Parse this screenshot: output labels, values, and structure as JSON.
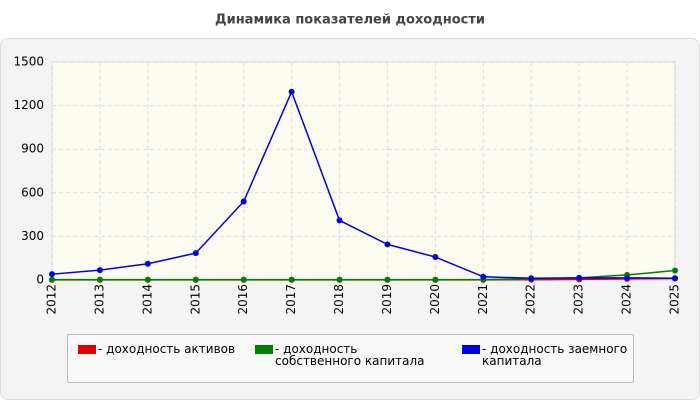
{
  "chart_data": {
    "type": "line",
    "title": "Динамика показателей доходности",
    "categories": [
      "2012",
      "2013",
      "2014",
      "2015",
      "2016",
      "2017",
      "2018",
      "2019",
      "2020",
      "2021",
      "2022",
      "2023",
      "2024",
      "2025"
    ],
    "series": [
      {
        "name": "- доходность активов",
        "color": "#e00000",
        "values": [
          1,
          1,
          1,
          1,
          1,
          1,
          1,
          1,
          1,
          1,
          2,
          4,
          8,
          10
        ]
      },
      {
        "name": "- доходность собственного капитала",
        "color": "#008000",
        "values": [
          3,
          3,
          3,
          3,
          3,
          3,
          3,
          3,
          3,
          3,
          8,
          15,
          35,
          65
        ]
      },
      {
        "name": "- доходность заемного капитала",
        "color": "#0000e0",
        "values": [
          40,
          68,
          112,
          185,
          540,
          1295,
          410,
          245,
          158,
          22,
          12,
          15,
          15,
          12
        ]
      }
    ],
    "ylim": [
      0,
      1500
    ],
    "yticks": [
      0,
      300,
      600,
      900,
      1200,
      1500
    ],
    "grid": true
  }
}
